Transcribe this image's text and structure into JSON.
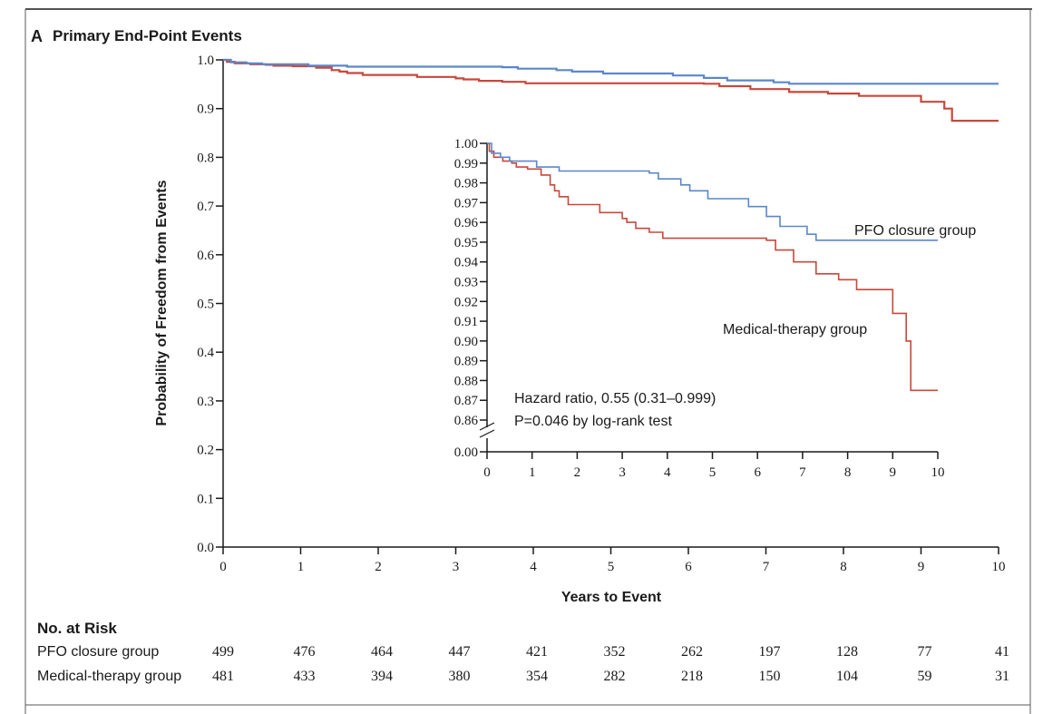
{
  "panel": {
    "letter": "A",
    "title": "Primary End-Point Events"
  },
  "colors": {
    "pfo": "#5b87c9",
    "medical": "#c8483c",
    "axis": "#1a1a1a",
    "frame": "#5a5a5a"
  },
  "chart_data": [
    {
      "type": "line",
      "chart_kind": "kaplan-meier",
      "title": "",
      "xlabel": "Years to Event",
      "ylabel": "Probability of Freedom from Events",
      "xlim": [
        0,
        10
      ],
      "ylim": [
        0,
        1.0
      ],
      "x_ticks": [
        "0",
        "1",
        "2",
        "3",
        "4",
        "5",
        "6",
        "7",
        "8",
        "9",
        "10"
      ],
      "y_ticks": [
        "0.0",
        "0.1",
        "0.2",
        "0.3",
        "0.4",
        "0.5",
        "0.6",
        "0.7",
        "0.8",
        "0.9",
        "1.0"
      ],
      "grid": false,
      "series": [
        {
          "name": "PFO closure group",
          "color": "#5b87c9",
          "points": [
            [
              0,
              1.0
            ],
            [
              0.1,
              0.995
            ],
            [
              0.3,
              0.993
            ],
            [
              0.5,
              0.991
            ],
            [
              1.1,
              0.988
            ],
            [
              1.6,
              0.986
            ],
            [
              3.6,
              0.985
            ],
            [
              3.8,
              0.982
            ],
            [
              4.3,
              0.979
            ],
            [
              4.5,
              0.976
            ],
            [
              4.9,
              0.972
            ],
            [
              5.8,
              0.968
            ],
            [
              6.2,
              0.963
            ],
            [
              6.5,
              0.958
            ],
            [
              7.1,
              0.954
            ],
            [
              7.3,
              0.951
            ],
            [
              10.0,
              0.951
            ]
          ]
        },
        {
          "name": "Medical-therapy group",
          "color": "#c8483c",
          "points": [
            [
              0,
              1.0
            ],
            [
              0.05,
              0.996
            ],
            [
              0.15,
              0.993
            ],
            [
              0.35,
              0.991
            ],
            [
              0.55,
              0.99
            ],
            [
              0.65,
              0.988
            ],
            [
              0.9,
              0.987
            ],
            [
              1.2,
              0.984
            ],
            [
              1.4,
              0.979
            ],
            [
              1.5,
              0.976
            ],
            [
              1.6,
              0.973
            ],
            [
              1.8,
              0.969
            ],
            [
              2.5,
              0.965
            ],
            [
              3.0,
              0.962
            ],
            [
              3.1,
              0.96
            ],
            [
              3.3,
              0.957
            ],
            [
              3.6,
              0.955
            ],
            [
              3.9,
              0.952
            ],
            [
              4.3,
              0.952
            ],
            [
              6.2,
              0.951
            ],
            [
              6.4,
              0.946
            ],
            [
              6.8,
              0.94
            ],
            [
              7.3,
              0.934
            ],
            [
              7.8,
              0.931
            ],
            [
              8.2,
              0.926
            ],
            [
              9.0,
              0.914
            ],
            [
              9.3,
              0.9
            ],
            [
              9.4,
              0.875
            ],
            [
              10.0,
              0.875
            ]
          ]
        }
      ]
    },
    {
      "type": "line",
      "chart_kind": "kaplan-meier-inset",
      "xlim": [
        0,
        10
      ],
      "ylim": [
        0.86,
        1.0
      ],
      "y_break_to": 0.0,
      "x_ticks": [
        "0",
        "1",
        "2",
        "3",
        "4",
        "5",
        "6",
        "7",
        "8",
        "9",
        "10"
      ],
      "y_ticks": [
        "1.00",
        "0.99",
        "0.98",
        "0.97",
        "0.96",
        "0.95",
        "0.94",
        "0.93",
        "0.92",
        "0.91",
        "0.90",
        "0.89",
        "0.88",
        "0.87",
        "0.86"
      ],
      "y_break_tick": "0.00",
      "annotations": {
        "pfo_label": "PFO closure group",
        "medical_label": "Medical-therapy group",
        "hazard_ratio": "Hazard ratio, 0.55 (0.31–0.999)",
        "p_value": "P=0.046 by log-rank test"
      }
    }
  ],
  "risk_table": {
    "title": "No. at Risk",
    "rows": [
      {
        "label": "PFO closure group",
        "values": [
          "499",
          "476",
          "464",
          "447",
          "421",
          "352",
          "262",
          "197",
          "128",
          "77",
          "41"
        ]
      },
      {
        "label": "Medical-therapy group",
        "values": [
          "481",
          "433",
          "394",
          "380",
          "354",
          "282",
          "218",
          "150",
          "104",
          "59",
          "31"
        ]
      }
    ]
  }
}
